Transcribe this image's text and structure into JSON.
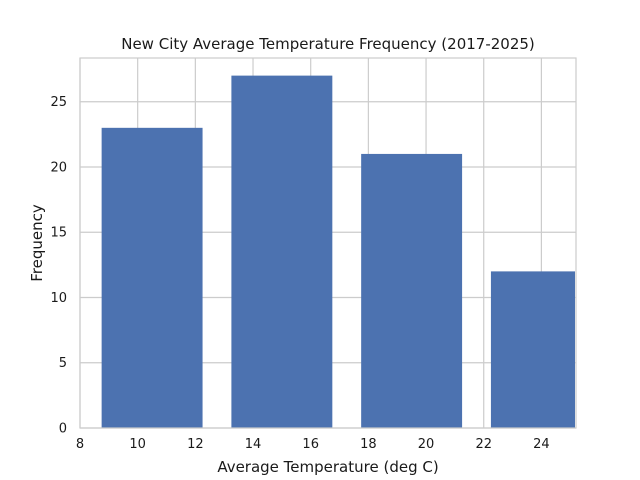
{
  "chart_data": {
    "type": "bar",
    "title": "New City Average Temperature Frequency (2017-2025)",
    "xlabel": "Average Temperature (deg C)",
    "ylabel": "Frequency",
    "xlim": [
      8,
      25.2
    ],
    "ylim": [
      0,
      28.35
    ],
    "xticks": [
      8,
      10,
      12,
      14,
      16,
      18,
      20,
      22,
      24
    ],
    "yticks": [
      0,
      5,
      10,
      15,
      20,
      25
    ],
    "grid": true,
    "bars": [
      {
        "x_start": 8.75,
        "x_end": 12.25,
        "value": 23
      },
      {
        "x_start": 13.25,
        "x_end": 16.75,
        "value": 27
      },
      {
        "x_start": 17.75,
        "x_end": 21.25,
        "value": 21
      },
      {
        "x_start": 22.25,
        "x_end": 25.75,
        "value": 12
      }
    ],
    "colors": {
      "bar": "#4c72b0",
      "grid": "#cccccc",
      "background": "#ffffff"
    }
  }
}
